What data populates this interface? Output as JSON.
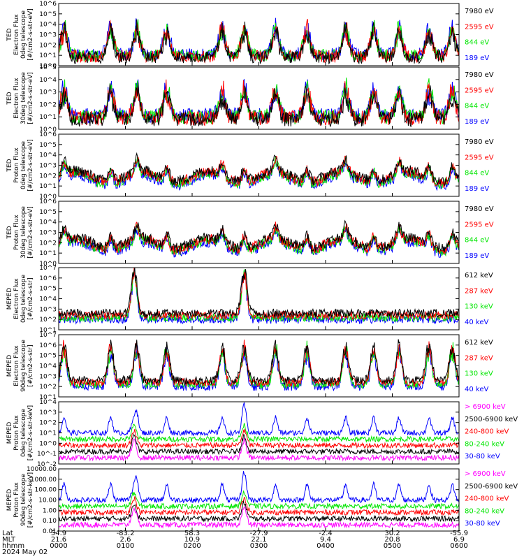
{
  "colors": {
    "black": "#000000",
    "red": "#ff0000",
    "green": "#00e600",
    "blue": "#0000ff",
    "magenta": "#ff00ff"
  },
  "chart_data": [
    {
      "type": "line",
      "panel": 1,
      "ylabel": [
        "TED",
        "Electron Flux",
        "0deg telescope",
        "[#/cm2-s-str-eV]"
      ],
      "yscale": "log",
      "ylim_exp": [
        0,
        6
      ],
      "yticks": [
        "10^0",
        "10^1",
        "10^2",
        "10^3",
        "10^4",
        "10^5",
        "10^6"
      ],
      "series": [
        {
          "name": "7980 eV",
          "color": "black"
        },
        {
          "name": "2595 eV",
          "color": "red"
        },
        {
          "name": "844 eV",
          "color": "green"
        },
        {
          "name": "189 eV",
          "color": "blue"
        }
      ]
    },
    {
      "type": "line",
      "panel": 2,
      "ylabel": [
        "TED",
        "Electron Flux",
        "30deg telescope",
        "[#/cm2-s-str-eV]"
      ],
      "yscale": "log",
      "ylim_exp": [
        0,
        5
      ],
      "yticks": [
        "10^0",
        "10^1",
        "10^2",
        "10^3",
        "10^4",
        "10^5"
      ],
      "series": [
        {
          "name": "7980 eV",
          "color": "black"
        },
        {
          "name": "2595 eV",
          "color": "red"
        },
        {
          "name": "844 eV",
          "color": "green"
        },
        {
          "name": "189 eV",
          "color": "blue"
        }
      ]
    },
    {
      "type": "line",
      "panel": 3,
      "ylabel": [
        "TED",
        "Proton Flux",
        "0deg telescope",
        "[#/cm2-s-str-eV]"
      ],
      "yscale": "log",
      "ylim_exp": [
        0,
        6
      ],
      "yticks": [
        "10^0",
        "10^1",
        "10^2",
        "10^3",
        "10^4",
        "10^5",
        "10^6"
      ],
      "series": [
        {
          "name": "7980 eV",
          "color": "black"
        },
        {
          "name": "2595 eV",
          "color": "red"
        },
        {
          "name": "844 eV",
          "color": "green"
        },
        {
          "name": "189 eV",
          "color": "blue"
        }
      ]
    },
    {
      "type": "line",
      "panel": 4,
      "ylabel": [
        "TED",
        "Proton Flux",
        "30deg telescope",
        "[#/cm2-s-str-eV]"
      ],
      "yscale": "log",
      "ylim_exp": [
        0,
        6
      ],
      "yticks": [
        "10^0",
        "10^1",
        "10^2",
        "10^3",
        "10^4",
        "10^5",
        "10^6"
      ],
      "series": [
        {
          "name": "7980 eV",
          "color": "black"
        },
        {
          "name": "2595 eV",
          "color": "red"
        },
        {
          "name": "844 eV",
          "color": "green"
        },
        {
          "name": "189 eV",
          "color": "blue"
        }
      ]
    },
    {
      "type": "line",
      "panel": 5,
      "ylabel": [
        "MEPED",
        "Electron Flux",
        "0deg telescope",
        "[#/cm2-s-str]"
      ],
      "yscale": "log",
      "ylim_exp": [
        1,
        7
      ],
      "yticks": [
        "10^1",
        "10^2",
        "10^3",
        "10^4",
        "10^5",
        "10^6",
        "10^7"
      ],
      "series": [
        {
          "name": "612 keV",
          "color": "black"
        },
        {
          "name": "287 keV",
          "color": "red"
        },
        {
          "name": "130 keV",
          "color": "green"
        },
        {
          "name": "40 keV",
          "color": "blue"
        }
      ]
    },
    {
      "type": "line",
      "panel": 6,
      "ylabel": [
        "MEPED",
        "Electron Flux",
        "90deg telescope",
        "[#/cm2-s-str]"
      ],
      "yscale": "log",
      "ylim_exp": [
        1,
        7
      ],
      "yticks": [
        "10^1",
        "10^2",
        "10^3",
        "10^4",
        "10^5",
        "10^6",
        "10^7"
      ],
      "series": [
        {
          "name": "612 keV",
          "color": "black"
        },
        {
          "name": "287 keV",
          "color": "red"
        },
        {
          "name": "130 keV",
          "color": "green"
        },
        {
          "name": "40 keV",
          "color": "blue"
        }
      ]
    },
    {
      "type": "line",
      "panel": 7,
      "ylabel": [
        "MEPED",
        "Proton Flux",
        "0deg telescope",
        "[#/cm2-s-str-keV]"
      ],
      "yscale": "log",
      "ylim_exp": [
        -2,
        4
      ],
      "yticks": [
        "10^-2",
        "10^-1",
        "10^0",
        "10^1",
        "10^2",
        "10^3",
        "10^4"
      ],
      "series": [
        {
          "name": "> 6900 keV",
          "color": "magenta"
        },
        {
          "name": "2500-6900 keV",
          "color": "black"
        },
        {
          "name": "240-800 keV",
          "color": "red"
        },
        {
          "name": "80-240 keV",
          "color": "green"
        },
        {
          "name": "30-80 keV",
          "color": "blue"
        }
      ]
    },
    {
      "type": "line",
      "panel": 8,
      "ylabel": [
        "MEPED",
        "Proton Flux",
        "90deg telescope",
        "[#/cm2-s-str-keV]"
      ],
      "yscale": "log",
      "ylim_exp": [
        -2,
        4
      ],
      "yticks": [
        "0.01",
        "0.10",
        "1.00",
        "10.00",
        "100.00",
        "1000.00",
        "10000.00"
      ],
      "series": [
        {
          "name": "> 6900 keV",
          "color": "magenta"
        },
        {
          "name": "2500-6900 keV",
          "color": "black"
        },
        {
          "name": "240-800 keV",
          "color": "red"
        },
        {
          "name": "80-240 keV",
          "color": "green"
        },
        {
          "name": "30-80 keV",
          "color": "blue"
        }
      ]
    }
  ],
  "xaxis": {
    "row_labels": [
      "Lat",
      "MLT",
      "hhmm",
      "2024 May 02"
    ],
    "ticks": [
      {
        "lat": "54.9",
        "mlt": "21.6",
        "hhmm": "0000"
      },
      {
        "lat": "-83.2",
        "mlt": "2.6",
        "hhmm": "0100"
      },
      {
        "lat": "58.3",
        "mlt": "10.9",
        "hhmm": "0200"
      },
      {
        "lat": "-27.9",
        "mlt": "22.1",
        "hhmm": "0300"
      },
      {
        "lat": "-2.4",
        "mlt": "9.4",
        "hhmm": "0400"
      },
      {
        "lat": "30.2",
        "mlt": "20.8",
        "hhmm": "0500"
      },
      {
        "lat": "-55.9",
        "mlt": "6.9",
        "hhmm": "0600"
      }
    ],
    "xlim_hours": [
      0,
      6
    ]
  }
}
